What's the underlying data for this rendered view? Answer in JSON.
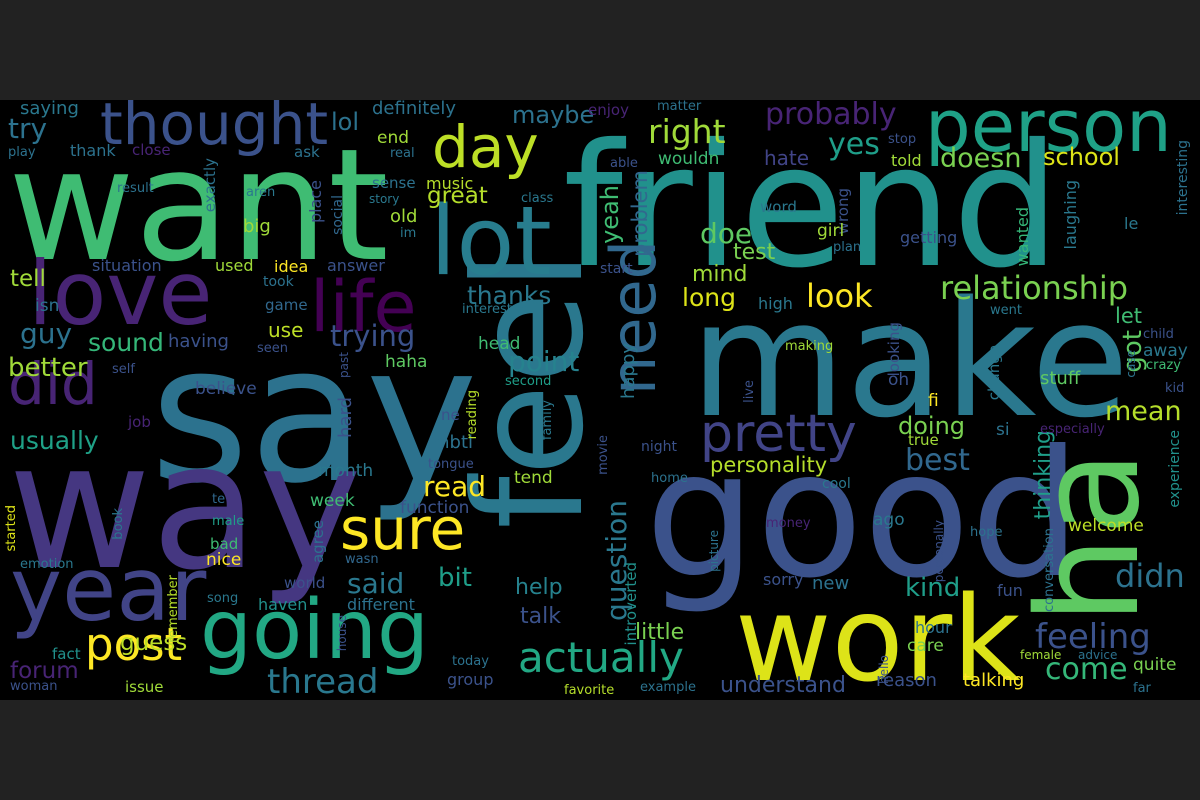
{
  "palette": {
    "page_background": "#222222",
    "canvas_background": "#000000",
    "colormap": "viridis"
  },
  "words": [
    {
      "text": "say",
      "color": "#2c728e"
    },
    {
      "text": "friend",
      "color": "#21918c"
    },
    {
      "text": "want",
      "color": "#3fbc73"
    },
    {
      "text": "way",
      "color": "#453781"
    },
    {
      "text": "make",
      "color": "#2a788e"
    },
    {
      "text": "feel",
      "color": "#2a788e"
    },
    {
      "text": "good",
      "color": "#3b528b"
    },
    {
      "text": "ha",
      "color": "#5ec962"
    },
    {
      "text": "work",
      "color": "#dde318"
    },
    {
      "text": "lot",
      "color": "#287d8e"
    },
    {
      "text": "love",
      "color": "#482475"
    },
    {
      "text": "life",
      "color": "#440154"
    },
    {
      "text": "year",
      "color": "#414487"
    },
    {
      "text": "going",
      "color": "#22a884"
    },
    {
      "text": "person",
      "color": "#1fa187"
    },
    {
      "text": "thought",
      "color": "#3b528b"
    },
    {
      "text": "need",
      "color": "#31688e"
    },
    {
      "text": "day",
      "color": "#bddf26"
    },
    {
      "text": "pretty",
      "color": "#414487"
    },
    {
      "text": "sure",
      "color": "#fde725"
    },
    {
      "text": "did",
      "color": "#482475"
    },
    {
      "text": "post",
      "color": "#fde725"
    },
    {
      "text": "actually",
      "color": "#22a884"
    },
    {
      "text": "relationship",
      "color": "#7ad151"
    },
    {
      "text": "thread",
      "color": "#2a788e"
    },
    {
      "text": "feeling",
      "color": "#3b528b"
    },
    {
      "text": "right",
      "color": "#a0da39"
    },
    {
      "text": "probably",
      "color": "#482475"
    },
    {
      "text": "look",
      "color": "#fde725"
    },
    {
      "text": "doesn",
      "color": "#7ad151"
    },
    {
      "text": "school",
      "color": "#dde318"
    },
    {
      "text": "yes",
      "color": "#1f9e89"
    },
    {
      "text": "mean",
      "color": "#b5de2b"
    },
    {
      "text": "best",
      "color": "#31688e"
    },
    {
      "text": "didn",
      "color": "#2c728e"
    },
    {
      "text": "come",
      "color": "#35b779"
    },
    {
      "text": "read",
      "color": "#fde725"
    },
    {
      "text": "trying",
      "color": "#3b528b"
    },
    {
      "text": "point",
      "color": "#26828e"
    },
    {
      "text": "question",
      "color": "#2a788e"
    },
    {
      "text": "personality",
      "color": "#b5de2b"
    },
    {
      "text": "kind",
      "color": "#1f9e89"
    },
    {
      "text": "usually",
      "color": "#1fa187"
    },
    {
      "text": "guy",
      "color": "#2c728e"
    },
    {
      "text": "better",
      "color": "#a0da39"
    },
    {
      "text": "sound",
      "color": "#35b779"
    },
    {
      "text": "said",
      "color": "#2a788e"
    },
    {
      "text": "bit",
      "color": "#1f9e89"
    },
    {
      "text": "thanks",
      "color": "#2a788e"
    },
    {
      "text": "long",
      "color": "#dde318"
    },
    {
      "text": "doe",
      "color": "#5ec962"
    },
    {
      "text": "mind",
      "color": "#a0da39"
    },
    {
      "text": "test",
      "color": "#7ad151"
    },
    {
      "text": "yeah",
      "color": "#3fbc73"
    },
    {
      "text": "problem",
      "color": "#31688e"
    },
    {
      "text": "got",
      "color": "#5ec962"
    },
    {
      "text": "let",
      "color": "#3fbc73"
    },
    {
      "text": "thinking",
      "color": "#1f9e89"
    },
    {
      "text": "little",
      "color": "#7ad151"
    },
    {
      "text": "talk",
      "color": "#3b528b"
    },
    {
      "text": "help",
      "color": "#26828e"
    },
    {
      "text": "guess",
      "color": "#bddf26"
    },
    {
      "text": "forum",
      "color": "#482475"
    },
    {
      "text": "understand",
      "color": "#3b528b"
    },
    {
      "text": "lol",
      "color": "#2c728e"
    },
    {
      "text": "try",
      "color": "#2c728e"
    },
    {
      "text": "tell",
      "color": "#a0da39"
    },
    {
      "text": "great",
      "color": "#b5de2b"
    },
    {
      "text": "doing",
      "color": "#7ad151"
    },
    {
      "text": "hate",
      "color": "#414487"
    },
    {
      "text": "maybe",
      "color": "#2c728e"
    },
    {
      "text": "definitely",
      "color": "#2c728e"
    },
    {
      "text": "saying",
      "color": "#2a788e"
    },
    {
      "text": "thank",
      "color": "#2c728e"
    },
    {
      "text": "close",
      "color": "#482475"
    },
    {
      "text": "play",
      "color": "#2c728e"
    },
    {
      "text": "end",
      "color": "#a0da39"
    },
    {
      "text": "real",
      "color": "#2c728e"
    },
    {
      "text": "sense",
      "color": "#2c728e"
    },
    {
      "text": "music",
      "color": "#b5de2b"
    },
    {
      "text": "old",
      "color": "#a0da39"
    },
    {
      "text": "big",
      "color": "#a0da39"
    },
    {
      "text": "place",
      "color": "#3b528b"
    },
    {
      "text": "social",
      "color": "#31688e"
    },
    {
      "text": "story",
      "color": "#2a788e"
    },
    {
      "text": "class",
      "color": "#2a788e"
    },
    {
      "text": "im",
      "color": "#2a788e"
    },
    {
      "text": "used",
      "color": "#a0da39"
    },
    {
      "text": "idea",
      "color": "#fde725"
    },
    {
      "text": "answer",
      "color": "#3b528b"
    },
    {
      "text": "situation",
      "color": "#3b528b"
    },
    {
      "text": "took",
      "color": "#2c728e"
    },
    {
      "text": "game",
      "color": "#31688e"
    },
    {
      "text": "interested",
      "color": "#2a788e"
    },
    {
      "text": "use",
      "color": "#bddf26"
    },
    {
      "text": "having",
      "color": "#3b528b"
    },
    {
      "text": "seen",
      "color": "#3b528b"
    },
    {
      "text": "head",
      "color": "#3fbc73"
    },
    {
      "text": "haha",
      "color": "#5ec962"
    },
    {
      "text": "second",
      "color": "#1f9e89"
    },
    {
      "text": "believe",
      "color": "#3b528b"
    },
    {
      "text": "job",
      "color": "#482475"
    },
    {
      "text": "hard",
      "color": "#3b528b"
    },
    {
      "text": "month",
      "color": "#2a788e"
    },
    {
      "text": "week",
      "color": "#3fbc73"
    },
    {
      "text": "function",
      "color": "#3b528b"
    },
    {
      "text": "agree",
      "color": "#2c728e"
    },
    {
      "text": "wasn",
      "color": "#31688e"
    },
    {
      "text": "different",
      "color": "#2c728e"
    },
    {
      "text": "haven",
      "color": "#21918c"
    },
    {
      "text": "world",
      "color": "#3b528b"
    },
    {
      "text": "nice",
      "color": "#fde725"
    },
    {
      "text": "bad",
      "color": "#3fbc73"
    },
    {
      "text": "male",
      "color": "#1f9e89"
    },
    {
      "text": "te",
      "color": "#31688e"
    },
    {
      "text": "book",
      "color": "#2a788e"
    },
    {
      "text": "started",
      "color": "#dde318"
    },
    {
      "text": "emotion",
      "color": "#2a788e"
    },
    {
      "text": "remember",
      "color": "#b5de2b"
    },
    {
      "text": "song",
      "color": "#2a788e"
    },
    {
      "text": "house",
      "color": "#3b528b"
    },
    {
      "text": "fact",
      "color": "#21918c"
    },
    {
      "text": "issue",
      "color": "#a0da39"
    },
    {
      "text": "woman",
      "color": "#3b528b"
    },
    {
      "text": "isn",
      "color": "#2c728e"
    },
    {
      "text": "self",
      "color": "#3b528b"
    },
    {
      "text": "past",
      "color": "#3b528b"
    },
    {
      "text": "enjoy",
      "color": "#482475"
    },
    {
      "text": "matter",
      "color": "#2c728e"
    },
    {
      "text": "able",
      "color": "#3b528b"
    },
    {
      "text": "wouldn",
      "color": "#3fbc73"
    },
    {
      "text": "stop",
      "color": "#3b528b"
    },
    {
      "text": "told",
      "color": "#a0da39"
    },
    {
      "text": "ask",
      "color": "#2c728e"
    },
    {
      "text": "result",
      "color": "#2c728e"
    },
    {
      "text": "aren",
      "color": "#2a788e"
    },
    {
      "text": "exactly",
      "color": "#2c728e"
    },
    {
      "text": "word",
      "color": "#2a788e"
    },
    {
      "text": "wrong",
      "color": "#3b528b"
    },
    {
      "text": "girl",
      "color": "#a0da39"
    },
    {
      "text": "plan",
      "color": "#2c728e"
    },
    {
      "text": "getting",
      "color": "#3b528b"
    },
    {
      "text": "wanted",
      "color": "#35b779"
    },
    {
      "text": "laughing",
      "color": "#2a788e"
    },
    {
      "text": "interesting",
      "color": "#2c728e"
    },
    {
      "text": "le",
      "color": "#2a788e"
    },
    {
      "text": "start",
      "color": "#3b528b"
    },
    {
      "text": "high",
      "color": "#2a788e"
    },
    {
      "text": "went",
      "color": "#2a788e"
    },
    {
      "text": "child",
      "color": "#3b528b"
    },
    {
      "text": "making",
      "color": "#a0da39"
    },
    {
      "text": "looking",
      "color": "#3b528b"
    },
    {
      "text": "change",
      "color": "#2a788e"
    },
    {
      "text": "case",
      "color": "#2c728e"
    },
    {
      "text": "crazy",
      "color": "#3fbc73"
    },
    {
      "text": "kid",
      "color": "#3b528b"
    },
    {
      "text": "live",
      "color": "#3b528b"
    },
    {
      "text": "oh",
      "color": "#3b528b"
    },
    {
      "text": "stuff",
      "color": "#5ec962"
    },
    {
      "text": "fi",
      "color": "#fde725"
    },
    {
      "text": "si",
      "color": "#2c728e"
    },
    {
      "text": "true",
      "color": "#a0da39"
    },
    {
      "text": "happy",
      "color": "#2a788e"
    },
    {
      "text": "ne",
      "color": "#3b528b"
    },
    {
      "text": "reading",
      "color": "#b5de2b"
    },
    {
      "text": "mbti",
      "color": "#2c728e"
    },
    {
      "text": "tongue",
      "color": "#3b528b"
    },
    {
      "text": "night",
      "color": "#3b528b"
    },
    {
      "text": "family",
      "color": "#2a788e"
    },
    {
      "text": "movie",
      "color": "#3b528b"
    },
    {
      "text": "tend",
      "color": "#a0da39"
    },
    {
      "text": "especially",
      "color": "#482475"
    },
    {
      "text": "experience",
      "color": "#21918c"
    },
    {
      "text": "home",
      "color": "#2c728e"
    },
    {
      "text": "cool",
      "color": "#2a788e"
    },
    {
      "text": "introverted",
      "color": "#21918c"
    },
    {
      "text": "ago",
      "color": "#2a788e"
    },
    {
      "text": "money",
      "color": "#482475"
    },
    {
      "text": "picture",
      "color": "#2c728e"
    },
    {
      "text": "welcome",
      "color": "#bddf26"
    },
    {
      "text": "personally",
      "color": "#3b528b"
    },
    {
      "text": "hope",
      "color": "#2c728e"
    },
    {
      "text": "conversation",
      "color": "#2c728e"
    },
    {
      "text": "sorry",
      "color": "#3b528b"
    },
    {
      "text": "new",
      "color": "#2c728e"
    },
    {
      "text": "fun",
      "color": "#3b528b"
    },
    {
      "text": "hour",
      "color": "#2c728e"
    },
    {
      "text": "care",
      "color": "#7ad151"
    },
    {
      "text": "hello",
      "color": "#3b528b"
    },
    {
      "text": "female",
      "color": "#a0da39"
    },
    {
      "text": "advice",
      "color": "#2c728e"
    },
    {
      "text": "quite",
      "color": "#7ad151"
    },
    {
      "text": "reason",
      "color": "#3b528b"
    },
    {
      "text": "talking",
      "color": "#fde725"
    },
    {
      "text": "far",
      "color": "#2c728e"
    },
    {
      "text": "today",
      "color": "#2c728e"
    },
    {
      "text": "group",
      "color": "#3b528b"
    },
    {
      "text": "example",
      "color": "#2c728e"
    },
    {
      "text": "favorite",
      "color": "#b5de2b"
    },
    {
      "text": "away",
      "color": "#2a788e"
    }
  ]
}
